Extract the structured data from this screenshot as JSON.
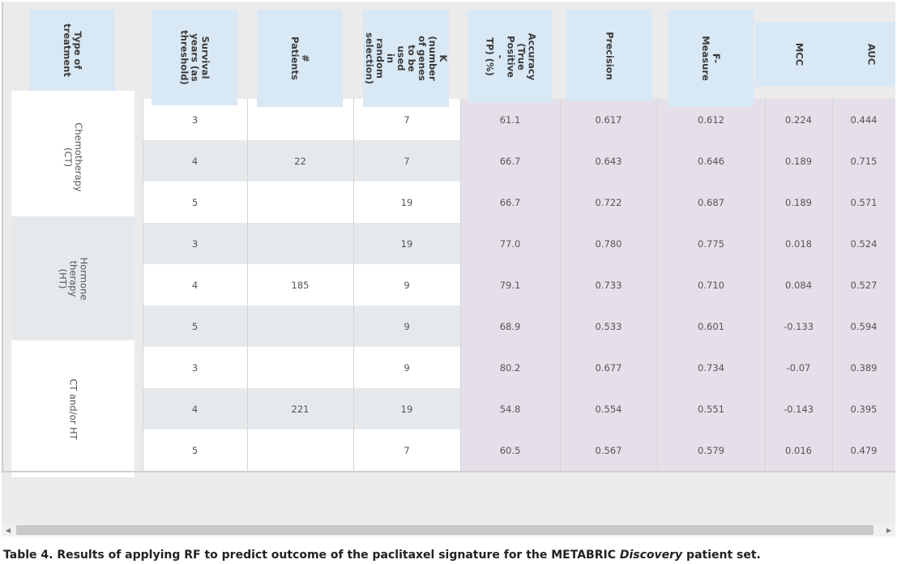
{
  "headers": [
    {
      "key": "treatment",
      "label": "Type of\ntreatment"
    },
    {
      "key": "years",
      "label": "Survival\nyears (as\nthreshold)"
    },
    {
      "key": "patients",
      "label": "# Patients"
    },
    {
      "key": "k",
      "label": "K (number\nof genes\nto be used\nin random\nselection)"
    },
    {
      "key": "accuracy",
      "label": "Accuracy\n(True\nPositive -\nTP) (%)"
    },
    {
      "key": "precision",
      "label": "Precision"
    },
    {
      "key": "fmeasure",
      "label": "F-Measure"
    },
    {
      "key": "mcc",
      "label": "MCC"
    },
    {
      "key": "auc",
      "label": "AUC"
    }
  ],
  "groups": [
    {
      "treatment": "Chemotherapy\n(CT)",
      "patients": "22"
    },
    {
      "treatment": "Hormone therapy\n(HT)",
      "patients": "185"
    },
    {
      "treatment": "CT and/or HT",
      "patients": "221"
    }
  ],
  "rows": [
    {
      "years": "3",
      "k": "7",
      "accuracy": "61.1",
      "precision": "0.617",
      "fmeasure": "0.612",
      "mcc": "0.224",
      "auc": "0.444"
    },
    {
      "years": "4",
      "k": "7",
      "accuracy": "66.7",
      "precision": "0.643",
      "fmeasure": "0.646",
      "mcc": "0.189",
      "auc": "0.715"
    },
    {
      "years": "5",
      "k": "19",
      "accuracy": "66.7",
      "precision": "0.722",
      "fmeasure": "0.687",
      "mcc": "0.189",
      "auc": "0.571"
    },
    {
      "years": "3",
      "k": "19",
      "accuracy": "77.0",
      "precision": "0.780",
      "fmeasure": "0.775",
      "mcc": "0.018",
      "auc": "0.524"
    },
    {
      "years": "4",
      "k": "9",
      "accuracy": "79.1",
      "precision": "0.733",
      "fmeasure": "0.710",
      "mcc": "0.084",
      "auc": "0.527"
    },
    {
      "years": "5",
      "k": "9",
      "accuracy": "68.9",
      "precision": "0.533",
      "fmeasure": "0.601",
      "mcc": "-0.133",
      "auc": "0.594"
    },
    {
      "years": "3",
      "k": "9",
      "accuracy": "80.2",
      "precision": "0.677",
      "fmeasure": "0.734",
      "mcc": "-0.07",
      "auc": "0.389"
    },
    {
      "years": "4",
      "k": "19",
      "accuracy": "54.8",
      "precision": "0.554",
      "fmeasure": "0.551",
      "mcc": "-0.143",
      "auc": "0.395"
    },
    {
      "years": "5",
      "k": "7",
      "accuracy": "60.5",
      "precision": "0.567",
      "fmeasure": "0.579",
      "mcc": "0.016",
      "auc": "0.479"
    }
  ],
  "caption": {
    "prefix": "Table 4. Results of applying RF to predict outcome of the paclitaxel signature for the METABRIC ",
    "italic": "Discovery",
    "suffix": " patient set."
  },
  "scrollbar": {
    "left_arrow": "◀",
    "right_arrow": "▶"
  }
}
